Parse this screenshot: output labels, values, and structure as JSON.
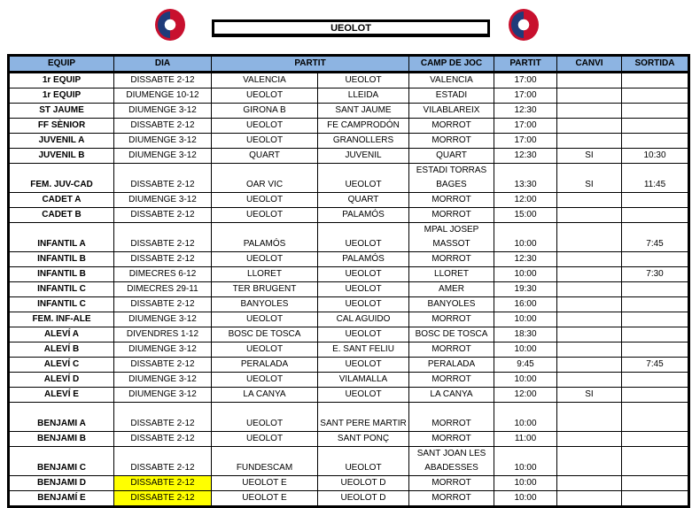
{
  "title": "UEOLOT",
  "colors": {
    "header_bg": "#8db4e2",
    "highlight": "#ffff00",
    "logo_red": "#c8102e",
    "logo_blue": "#1f3b7a"
  },
  "headers": [
    "EQUIP",
    "DIA",
    "PARTIT",
    "CAMP DE JOC",
    "PARTIT",
    "CANVI",
    "SORTIDA"
  ],
  "rows": [
    {
      "equip": "1r EQUIP",
      "dia": "DISSABTE 2-12",
      "local": "VALENCIA",
      "visitant": "UEOLOT",
      "camp": "VALENCIA",
      "hora": "17:00",
      "canvi": "",
      "sortida": ""
    },
    {
      "equip": "1r EQUIP",
      "dia": "DIUMENGE 10-12",
      "local": "UEOLOT",
      "visitant": "LLEIDA",
      "camp": "ESTADI",
      "hora": "17:00",
      "canvi": "",
      "sortida": ""
    },
    {
      "equip": "ST JAUME",
      "dia": "DIUMENGE 3-12",
      "local": "GIRONA B",
      "visitant": "SANT JAUME",
      "camp": "VILABLAREIX",
      "hora": "12:30",
      "canvi": "",
      "sortida": ""
    },
    {
      "equip": "FF SÈNIOR",
      "dia": "DISSABTE 2-12",
      "local": "UEOLOT",
      "visitant": "FE CAMPRODÓN",
      "camp": "MORROT",
      "hora": "17:00",
      "canvi": "",
      "sortida": ""
    },
    {
      "equip": "JUVENIL A",
      "dia": "DIUMENGE 3-12",
      "local": "UEOLOT",
      "visitant": "GRANOLLERS",
      "camp": "MORROT",
      "hora": "17:00",
      "canvi": "",
      "sortida": ""
    },
    {
      "equip": "JUVENIL B",
      "dia": "DIUMENGE 3-12",
      "local": "QUART",
      "visitant": "JUVENIL",
      "camp": "QUART",
      "hora": "12:30",
      "canvi": "SI",
      "sortida": "10:30"
    },
    {
      "equip": "FEM. JUV-CAD",
      "dia": "DISSABTE 2-12",
      "local": "OAR VIC",
      "visitant": "UEOLOT",
      "camp": "ESTADI TORRAS BAGES",
      "hora": "13:30",
      "canvi": "SI",
      "sortida": "11:45",
      "tall": true
    },
    {
      "equip": "CADET A",
      "dia": "DIUMENGE 3-12",
      "local": "UEOLOT",
      "visitant": "QUART",
      "camp": "MORROT",
      "hora": "12:00",
      "canvi": "",
      "sortida": ""
    },
    {
      "equip": "CADET B",
      "dia": "DISSABTE 2-12",
      "local": "UEOLOT",
      "visitant": "PALAMÓS",
      "camp": "MORROT",
      "hora": "15:00",
      "canvi": "",
      "sortida": ""
    },
    {
      "equip": "INFANTIL A",
      "dia": "DISSABTE 2-12",
      "local": "PALAMÓS",
      "visitant": "UEOLOT",
      "camp": "MPAL JOSEP MASSOT",
      "hora": "10:00",
      "canvi": "",
      "sortida": "7:45",
      "tall": true
    },
    {
      "equip": "INFANTIL B",
      "dia": "DISSABTE 2-12",
      "local": "UEOLOT",
      "visitant": "PALAMÓS",
      "camp": "MORROT",
      "hora": "12:30",
      "canvi": "",
      "sortida": ""
    },
    {
      "equip": "INFANTIL B",
      "dia": "DIMECRES 6-12",
      "local": "LLORET",
      "visitant": "UEOLOT",
      "camp": "LLORET",
      "hora": "10:00",
      "canvi": "",
      "sortida": "7:30"
    },
    {
      "equip": "INFANTIL C",
      "dia": "DIMECRES 29-11",
      "local": "TER BRUGENT",
      "visitant": "UEOLOT",
      "camp": "AMER",
      "hora": "19:30",
      "canvi": "",
      "sortida": ""
    },
    {
      "equip": "INFANTIL C",
      "dia": "DISSABTE 2-12",
      "local": "BANYOLES",
      "visitant": "UEOLOT",
      "camp": "BANYOLES",
      "hora": "16:00",
      "canvi": "",
      "sortida": ""
    },
    {
      "equip": "FEM. INF-ALE",
      "dia": "DIUMENGE 3-12",
      "local": "UEOLOT",
      "visitant": "CAL AGUIDO",
      "camp": "MORROT",
      "hora": "10:00",
      "canvi": "",
      "sortida": ""
    },
    {
      "equip": "ALEVÍ A",
      "dia": "DIVENDRES 1-12",
      "local": "BOSC DE TOSCA",
      "visitant": "UEOLOT",
      "camp": "BOSC DE TOSCA",
      "hora": "18:30",
      "canvi": "",
      "sortida": ""
    },
    {
      "equip": "ALEVÍ B",
      "dia": "DIUMENGE 3-12",
      "local": "UEOLOT",
      "visitant": "E. SANT FELIU",
      "camp": "MORROT",
      "hora": "10:00",
      "canvi": "",
      "sortida": ""
    },
    {
      "equip": "ALEVÍ C",
      "dia": "DISSABTE 2-12",
      "local": "PERALADA",
      "visitant": "UEOLOT",
      "camp": "PERALADA",
      "hora": "9:45",
      "canvi": "",
      "sortida": "7:45"
    },
    {
      "equip": "ALEVÍ D",
      "dia": "DIUMENGE 3-12",
      "local": "UEOLOT",
      "visitant": "VILAMALLA",
      "camp": "MORROT",
      "hora": "10:00",
      "canvi": "",
      "sortida": ""
    },
    {
      "equip": "ALEVÍ E",
      "dia": "DIUMENGE 3-12",
      "local": "LA CANYA",
      "visitant": "UEOLOT",
      "camp": "LA CANYA",
      "hora": "12:00",
      "canvi": "SI",
      "sortida": ""
    },
    {
      "equip": "BENJAMI A",
      "dia": "DISSABTE 2-12",
      "local": "UEOLOT",
      "visitant": "SANT PERE MARTIR",
      "camp": "MORROT",
      "hora": "10:00",
      "canvi": "",
      "sortida": "",
      "tall": true
    },
    {
      "equip": "BENJAMI B",
      "dia": "DISSABTE 2-12",
      "local": "UEOLOT",
      "visitant": "SANT PONÇ",
      "camp": "MORROT",
      "hora": "11:00",
      "canvi": "",
      "sortida": ""
    },
    {
      "equip": "BENJAMI C",
      "dia": "DISSABTE 2-12",
      "local": "FUNDESCAM",
      "visitant": "UEOLOT",
      "camp": "SANT JOAN LES ABADESSES",
      "hora": "10:00",
      "canvi": "",
      "sortida": "",
      "tall": true
    },
    {
      "equip": "BENJAMI D",
      "dia": "DISSABTE 2-12",
      "local": "UEOLOT E",
      "visitant": "UEOLOT D",
      "camp": "MORROT",
      "hora": "10:00",
      "canvi": "",
      "sortida": "",
      "highlight": true
    },
    {
      "equip": "BENJAMÍ E",
      "dia": "DISSABTE 2-12",
      "local": "UEOLOT E",
      "visitant": "UEOLOT D",
      "camp": "MORROT",
      "hora": "10:00",
      "canvi": "",
      "sortida": "",
      "highlight": true
    }
  ]
}
